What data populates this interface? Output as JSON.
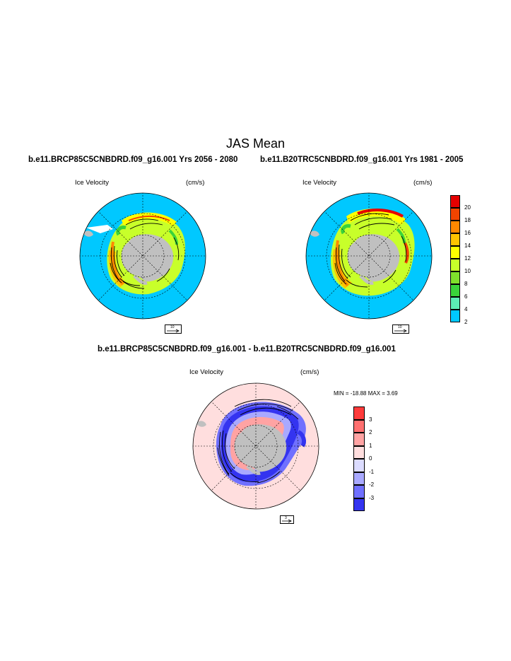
{
  "page": {
    "title": "JAS Mean",
    "header_left": "b.e11.BRCP85C5CNBDRD.f09_g16.001  Yrs 2056 - 2080",
    "header_right": "b.e11.B20TRC5CNBDRD.f09_g16.001  Yrs 1981 - 2005",
    "diff_header": "b.e11.BRCP85C5CNBDRD.f09_g16.001 - b.e11.B20TRC5CNBDRD.f09_g16.001"
  },
  "panels": {
    "left": {
      "field_label": "Ice Velocity",
      "units": "(cm/s)",
      "ref_vector": "10"
    },
    "right": {
      "field_label": "Ice Velocity",
      "units": "(cm/s)",
      "ref_vector": "10"
    },
    "diff": {
      "field_label": "Ice Velocity",
      "units": "(cm/s)",
      "ref_vector": "3",
      "minmax": "MIN = -18.88 MAX =   3.69"
    }
  },
  "colorbar_top": {
    "labels": [
      "20",
      "18",
      "16",
      "14",
      "12",
      "10",
      "8",
      "6",
      "4",
      "2"
    ],
    "colors": [
      "#e50000",
      "#f24400",
      "#ff8800",
      "#ffc400",
      "#ffff00",
      "#c8ff2a",
      "#7fe02c",
      "#3ad33a",
      "#5cedb4",
      "#00c8ff"
    ]
  },
  "colorbar_diff": {
    "labels": [
      "3",
      "2",
      "1",
      "0",
      "-1",
      "-2",
      "-3"
    ],
    "colors": [
      "#ff3b3b",
      "#ff7070",
      "#ffa3a3",
      "#ffdede",
      "#dcdcff",
      "#a9a9ff",
      "#7070ff",
      "#3434f0"
    ]
  },
  "map_colors": {
    "ocean": "#00c8ff",
    "land": "#c0c0c0",
    "diff_background": "#ffdede"
  }
}
